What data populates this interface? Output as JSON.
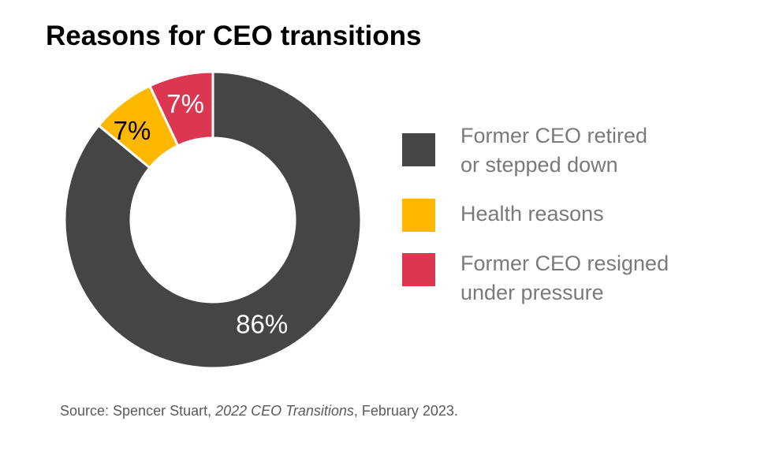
{
  "chart_data": {
    "type": "pie",
    "variant": "donut",
    "title": "Reasons for CEO transitions",
    "categories": [
      "Former CEO retired or stepped down",
      "Health reasons",
      "Former CEO resigned under pressure"
    ],
    "values": [
      86,
      7,
      7
    ],
    "data_labels": [
      "86%",
      "7%",
      "7%"
    ],
    "colors": [
      "#454545",
      "#ffb800",
      "#dc3750"
    ],
    "label_colors": [
      "#ffffff",
      "#000000",
      "#ffffff"
    ],
    "legend": {
      "placement": "right",
      "entries": [
        "Former CEO retired\nor stepped down",
        "Health reasons",
        "Former CEO resigned\nunder pressure"
      ]
    },
    "slice_order": "clockwise-from-top"
  },
  "source": {
    "prefix": "Source: Spencer Stuart, ",
    "publication": "2022 CEO Transitions",
    "suffix": ", February 2023."
  }
}
